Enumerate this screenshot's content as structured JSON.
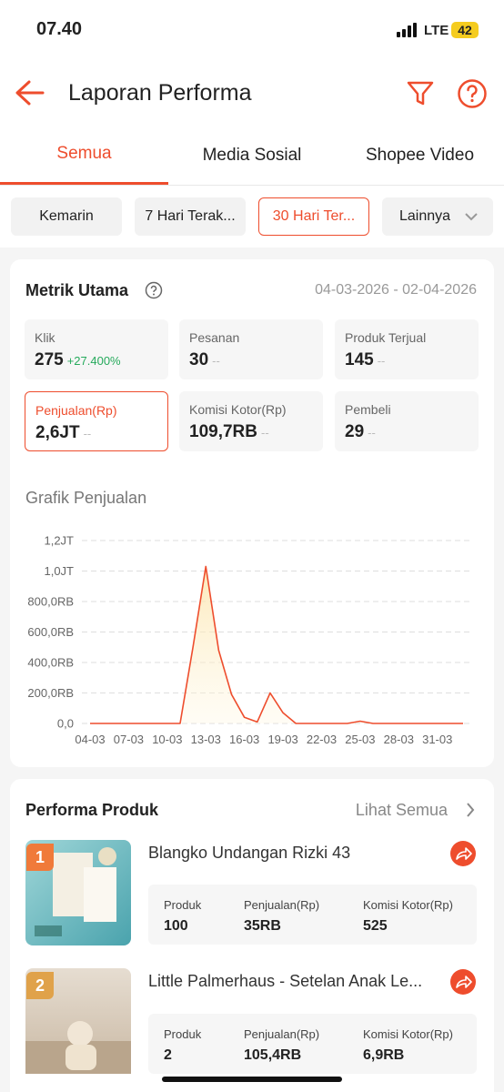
{
  "status_bar": {
    "time": "07.40",
    "network": "LTE",
    "battery": "42"
  },
  "header": {
    "title": "Laporan Performa"
  },
  "tabs": [
    "Semua",
    "Media Sosial",
    "Shopee Video"
  ],
  "filters": [
    "Kemarin",
    "7 Hari Terak...",
    "30 Hari Ter...",
    "Lainnya"
  ],
  "metrics": {
    "title": "Metrik Utama",
    "date_range": "04-03-2026 - 02-04-2026",
    "items": [
      {
        "label": "Klik",
        "value": "275",
        "change": "+27.400%"
      },
      {
        "label": "Pesanan",
        "value": "30",
        "change": "--"
      },
      {
        "label": "Produk Terjual",
        "value": "145",
        "change": "--"
      },
      {
        "label": "Penjualan(Rp)",
        "value": "2,6JT",
        "change": "--"
      },
      {
        "label": "Komisi Kotor(Rp)",
        "value": "109,7RB",
        "change": "--"
      },
      {
        "label": "Pembeli",
        "value": "29",
        "change": "--"
      }
    ]
  },
  "chart_data": {
    "type": "line",
    "title": "Grafik Penjualan",
    "categories": [
      "04-03",
      null,
      null,
      "07-03",
      null,
      null,
      "10-03",
      null,
      null,
      "13-03",
      null,
      null,
      "16-03",
      null,
      null,
      "19-03",
      null,
      null,
      "22-03",
      null,
      null,
      "25-03",
      null,
      null,
      "28-03",
      null,
      null,
      "31-03",
      null,
      null
    ],
    "values": [
      0,
      0,
      0,
      0,
      0,
      0,
      0,
      0,
      500000,
      1030000,
      480000,
      190000,
      40000,
      10000,
      200000,
      70000,
      0,
      0,
      0,
      0,
      0,
      15000,
      0,
      0,
      0,
      0,
      0,
      0,
      0,
      0
    ],
    "color": "#ee4d2d",
    "ylim": [
      0,
      1200000
    ],
    "yticks": [
      {
        "value": 0,
        "label": "0,0"
      },
      {
        "value": 200000,
        "label": "200,0RB"
      },
      {
        "value": 400000,
        "label": "400,0RB"
      },
      {
        "value": 600000,
        "label": "600,0RB"
      },
      {
        "value": 800000,
        "label": "800,0RB"
      },
      {
        "value": 1000000,
        "label": "1,0JT"
      },
      {
        "value": 1200000,
        "label": "1,2JT"
      }
    ],
    "grid": true
  },
  "products": {
    "title": "Performa Produk",
    "link": "Lihat Semua",
    "columns": [
      "Produk",
      "Penjualan(Rp)",
      "Komisi Kotor(Rp)"
    ],
    "items": [
      {
        "rank": "1",
        "name": "Blangko Undangan Rizki 43",
        "stats": [
          "100",
          "35RB",
          "525"
        ]
      },
      {
        "rank": "2",
        "name": "Little Palmerhaus - Setelan Anak Le...",
        "stats": [
          "2",
          "105,4RB",
          "6,9RB"
        ]
      }
    ]
  }
}
